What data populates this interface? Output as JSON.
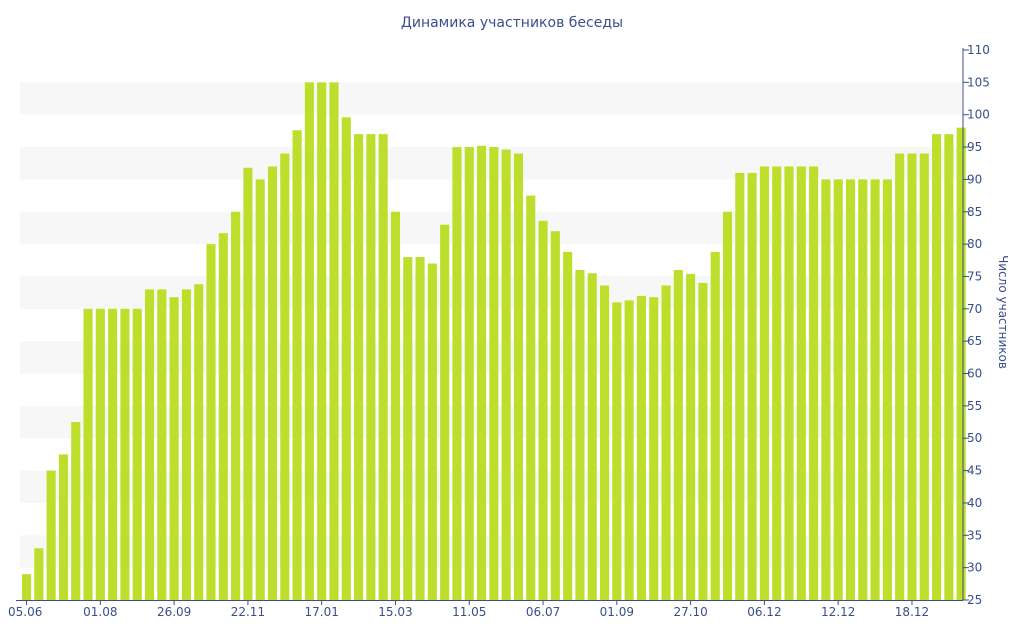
{
  "chart_data": {
    "type": "bar",
    "title": "Динамика участников беседы",
    "xlabel": "",
    "ylabel": "Число участников",
    "ylim": [
      25,
      110
    ],
    "y_ticks": [
      25,
      30,
      35,
      40,
      45,
      50,
      55,
      60,
      65,
      70,
      75,
      80,
      85,
      90,
      95,
      100,
      105,
      110
    ],
    "y_axis_side": "right",
    "grid": "alternating horizontal bands",
    "legend": "none",
    "bar_color": "#bddf2b",
    "band_color": "#f7f7f7",
    "text_color": "#3b4e8c",
    "x_tick_labels": [
      {
        "index": 0,
        "label": "05.06"
      },
      {
        "index": 6,
        "label": "01.08"
      },
      {
        "index": 12,
        "label": "26.09"
      },
      {
        "index": 18,
        "label": "22.11"
      },
      {
        "index": 24,
        "label": "17.01"
      },
      {
        "index": 30,
        "label": "15.03"
      },
      {
        "index": 36,
        "label": "11.05"
      },
      {
        "index": 42,
        "label": "06.07"
      },
      {
        "index": 48,
        "label": "01.09"
      },
      {
        "index": 54,
        "label": "27.10"
      },
      {
        "index": 60,
        "label": "06.12"
      },
      {
        "index": 66,
        "label": "12.12"
      },
      {
        "index": 72,
        "label": "18.12"
      }
    ],
    "values": [
      29,
      33,
      45,
      47.5,
      52.5,
      70,
      70,
      70,
      70,
      70,
      73,
      73,
      71.8,
      73,
      73.8,
      80,
      81.7,
      85,
      91.8,
      90,
      92,
      94,
      97.6,
      105,
      105,
      105,
      99.6,
      97,
      97,
      97,
      85,
      78,
      78,
      77,
      83,
      95,
      95,
      95.2,
      95,
      94.6,
      94,
      87.5,
      83.6,
      82,
      78.8,
      76,
      75.5,
      73.6,
      71,
      71.3,
      72,
      71.8,
      73.6,
      76,
      75.4,
      74,
      78.8,
      85,
      91,
      91,
      92,
      92,
      92,
      92,
      92,
      90,
      90,
      90,
      90,
      90,
      90,
      94,
      94,
      94,
      97,
      97,
      98
    ]
  }
}
